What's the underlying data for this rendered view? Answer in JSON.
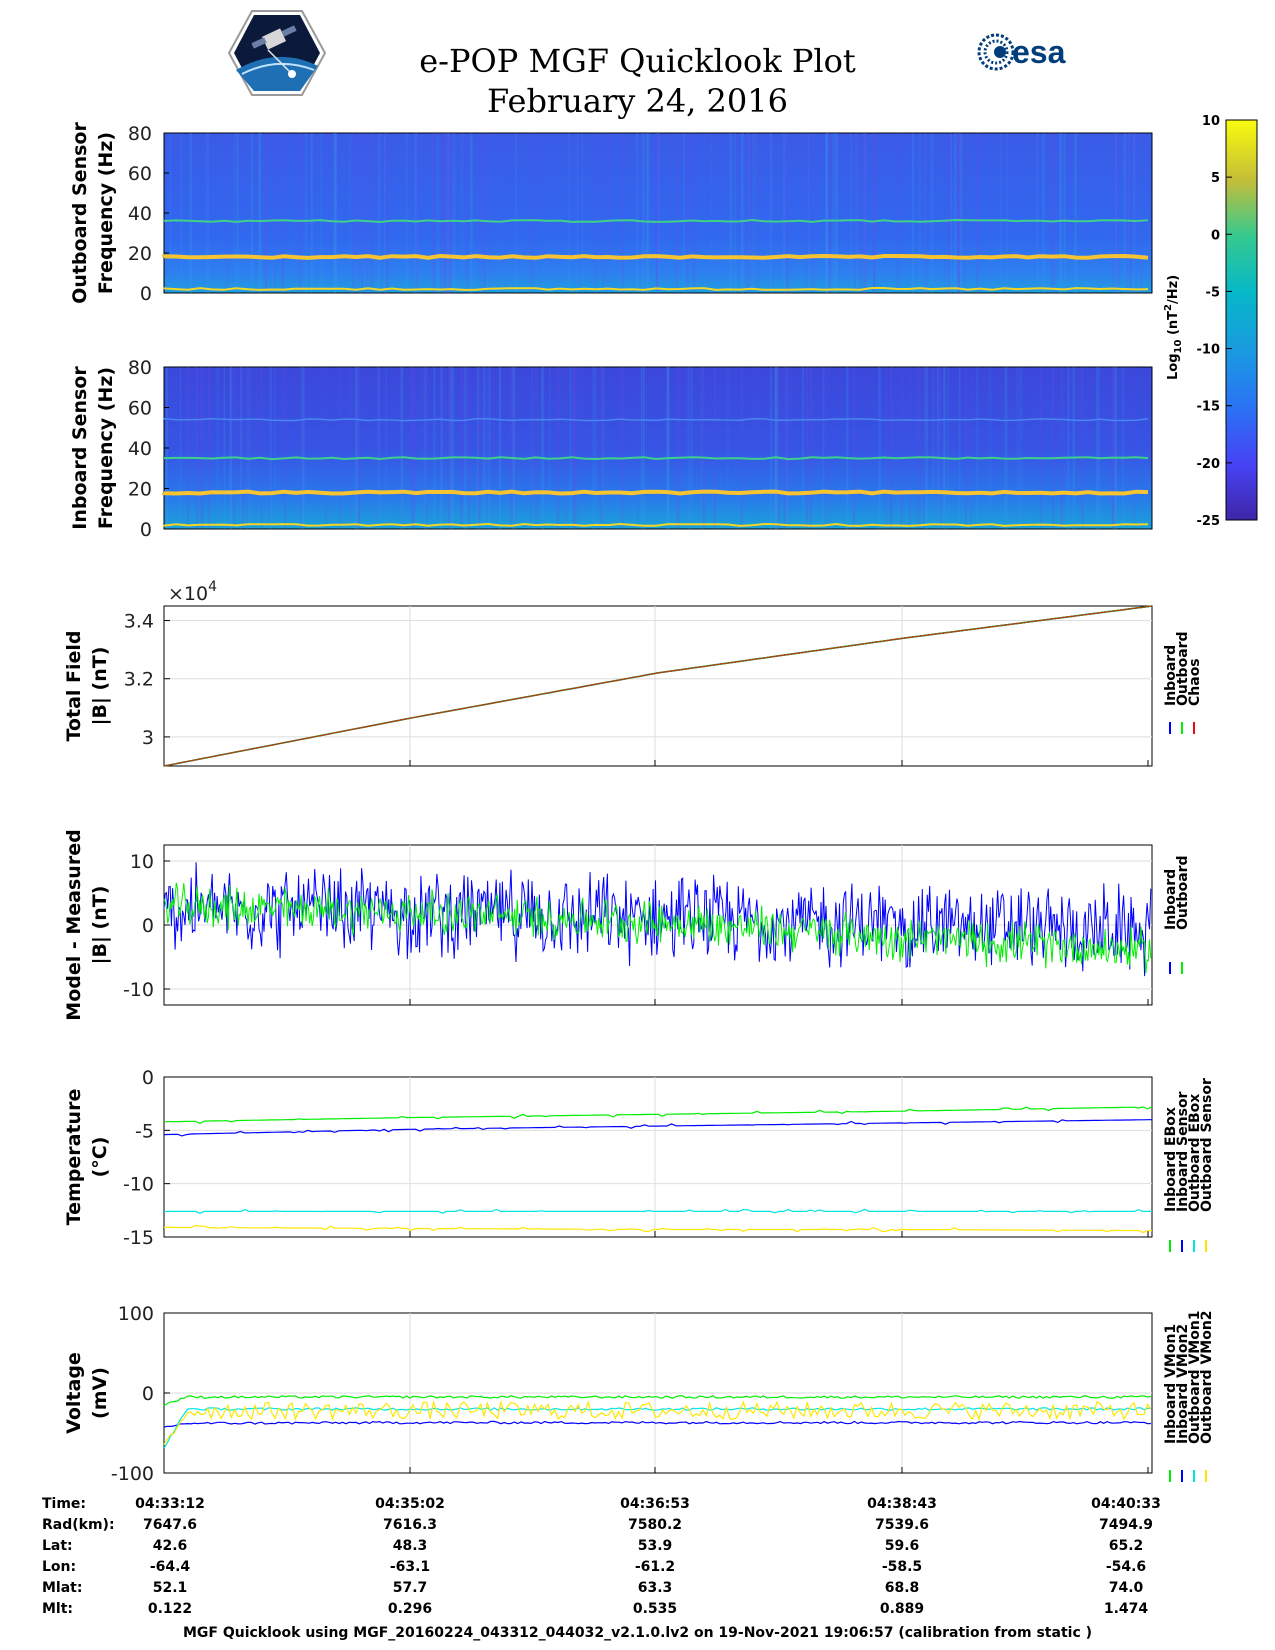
{
  "header": {
    "title": "e-POP MGF Quicklook Plot",
    "date": "February 24, 2016",
    "logo_left": "Cassiope e-POP mission logo",
    "logo_right_text": "esa"
  },
  "colors": {
    "inboard": "#0000ff",
    "outboard": "#00ee00",
    "chaos": "#e01010",
    "cyan": "#00e5e5",
    "yellow": "#ffe600",
    "spec_bg": "#2a6ff0"
  },
  "colorbar": {
    "label_prefix": "Log",
    "label_sub": "10",
    "label_mid": " (nT",
    "label_sup": "2",
    "label_suffix": "/Hz)",
    "ticks": [
      "10",
      "5",
      "0",
      "-5",
      "-10",
      "-15",
      "-20",
      "-25"
    ],
    "range": [
      -25,
      10
    ]
  },
  "chart_data": [
    {
      "type": "heatmap",
      "id": "outboard-spectrogram",
      "ylabel_lines": [
        "Outboard Sensor",
        "Frequency (Hz)"
      ],
      "yticks": [
        "80",
        "60",
        "40",
        "20",
        "0"
      ],
      "ylim": [
        0,
        80
      ],
      "harmonic_lines_hz": [
        2,
        18,
        36
      ],
      "xlim_s": [
        0,
        440
      ]
    },
    {
      "type": "heatmap",
      "id": "inboard-spectrogram",
      "ylabel_lines": [
        "Inboard Sensor",
        "Frequency (Hz)"
      ],
      "yticks": [
        "80",
        "60",
        "40",
        "20",
        "0"
      ],
      "ylim": [
        0,
        80
      ],
      "harmonic_lines_hz": [
        2,
        18,
        35,
        54
      ],
      "xlim_s": [
        0,
        440
      ]
    },
    {
      "type": "line",
      "id": "total-field",
      "ylabel_lines": [
        "Total Field",
        "|B| (nT)"
      ],
      "exponent_label": "×10",
      "exponent_power": "4",
      "yticks": [
        "3.4",
        "3.2",
        "3"
      ],
      "ytick_values": [
        3.4,
        3.2,
        3.0
      ],
      "ylim": [
        2.9,
        3.45
      ],
      "x": [
        0,
        110,
        220,
        330,
        440
      ],
      "series": [
        {
          "name": "Inboard",
          "color": "#0000ff",
          "values": [
            2.9,
            3.065,
            3.22,
            3.34,
            3.45
          ]
        },
        {
          "name": "Outboard",
          "color": "#00ee00",
          "values": [
            2.9,
            3.065,
            3.22,
            3.34,
            3.45
          ]
        },
        {
          "name": "Chaos",
          "color": "#e01010",
          "values": [
            2.9,
            3.065,
            3.22,
            3.34,
            3.45
          ]
        }
      ],
      "legend": [
        "Inboard",
        "Outboard",
        "Chaos"
      ]
    },
    {
      "type": "line",
      "id": "model-measured",
      "ylabel_lines": [
        "Model - Measured",
        "|B| (nT)"
      ],
      "yticks": [
        "10",
        "0",
        "-10"
      ],
      "ytick_values": [
        10,
        0,
        -10
      ],
      "ylim": [
        -12.5,
        12.5
      ],
      "x": [
        0,
        110,
        220,
        330,
        440
      ],
      "series": [
        {
          "name": "Inboard",
          "color": "#0000ff",
          "center": [
            2.5,
            2.0,
            1.0,
            0.0,
            -1.0
          ],
          "amplitude": 8
        },
        {
          "name": "Outboard",
          "color": "#00ee00",
          "center": [
            3.0,
            2.0,
            0.5,
            -2.0,
            -4.0
          ],
          "amplitude": 4
        }
      ],
      "legend": [
        "Inboard",
        "Outboard"
      ]
    },
    {
      "type": "line",
      "id": "temperature",
      "ylabel_lines": [
        "Temperature",
        "(°C)"
      ],
      "yticks": [
        "0",
        "-5",
        "-10",
        "-15"
      ],
      "ytick_values": [
        0,
        -5,
        -10,
        -15
      ],
      "ylim": [
        -15,
        0
      ],
      "x": [
        0,
        110,
        220,
        330,
        440
      ],
      "series": [
        {
          "name": "Inboard EBox",
          "color": "#00ee00",
          "values": [
            -4.2,
            -3.8,
            -3.5,
            -3.2,
            -2.8
          ]
        },
        {
          "name": "Inboard Sensor",
          "color": "#0000ff",
          "values": [
            -5.4,
            -4.9,
            -4.6,
            -4.3,
            -4.0
          ]
        },
        {
          "name": "Outboard EBox",
          "color": "#00e5e5",
          "values": [
            -12.6,
            -12.6,
            -12.6,
            -12.6,
            -12.6
          ]
        },
        {
          "name": "Outboard Sensor",
          "color": "#ffe600",
          "values": [
            -14.1,
            -14.2,
            -14.3,
            -14.3,
            -14.4
          ]
        }
      ],
      "legend": [
        "Inboard EBox",
        "Inboard Sensor",
        "Outboard EBox",
        "Outboard Sensor"
      ]
    },
    {
      "type": "line",
      "id": "voltage",
      "ylabel_lines": [
        "Voltage",
        "(mV)"
      ],
      "yticks": [
        "100",
        "0",
        "-100"
      ],
      "ytick_values": [
        100,
        0,
        -100
      ],
      "ylim": [
        -100,
        100
      ],
      "x": [
        0,
        110,
        220,
        330,
        440
      ],
      "series": [
        {
          "name": "Inboard VMon1",
          "color": "#00ee00",
          "values": [
            -5,
            -5,
            -5,
            -5,
            -5
          ]
        },
        {
          "name": "Inboard VMon2",
          "color": "#0000ff",
          "values": [
            -38,
            -37,
            -37,
            -37,
            -37
          ]
        },
        {
          "name": "Outboard VMon1",
          "color": "#00e5e5",
          "values": [
            -20,
            -20,
            -20,
            -20,
            -20
          ]
        },
        {
          "name": "Outboard VMon2",
          "color": "#ffe600",
          "values": [
            -22,
            -22,
            -22,
            -22,
            -22
          ]
        }
      ],
      "legend": [
        "Inboard VMon1",
        "Inboard VMon2",
        "Outboard VMon1",
        "Outboard VMon2"
      ]
    }
  ],
  "time_axis": {
    "labels": [
      "Time:",
      "Rad(km):",
      "Lat:",
      "Lon:",
      "Mlat:",
      "Mlt:"
    ],
    "columns": [
      {
        "time": "04:33:12",
        "rad": "7647.6",
        "lat": "42.6",
        "lon": "-64.4",
        "mlat": "52.1",
        "mlt": "0.122"
      },
      {
        "time": "04:35:02",
        "rad": "7616.3",
        "lat": "48.3",
        "lon": "-63.1",
        "mlat": "57.7",
        "mlt": "0.296"
      },
      {
        "time": "04:36:53",
        "rad": "7580.2",
        "lat": "53.9",
        "lon": "-61.2",
        "mlat": "63.3",
        "mlt": "0.535"
      },
      {
        "time": "04:38:43",
        "rad": "7539.6",
        "lat": "59.6",
        "lon": "-58.5",
        "mlat": "68.8",
        "mlt": "0.889"
      },
      {
        "time": "04:40:33",
        "rad": "7494.9",
        "lat": "65.2",
        "lon": "-54.6",
        "mlat": "74.0",
        "mlt": "1.474"
      }
    ]
  },
  "footer": {
    "text": "MGF Quicklook using MGF_20160224_043312_044032_v2.1.0.lv2 on 19-Nov-2021 19:06:57 (calibration from static )"
  }
}
